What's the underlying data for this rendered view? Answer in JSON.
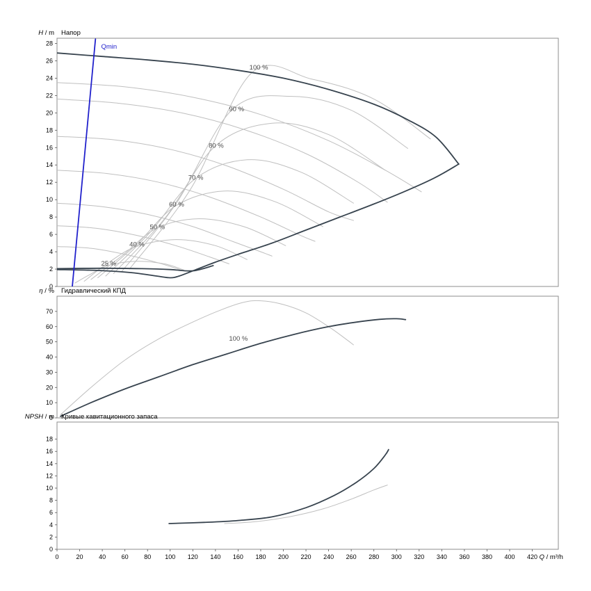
{
  "colors": {
    "dark_curve": "#37434e",
    "gray_curve": "#bfbfbf",
    "qmin_blue": "#2121cc",
    "annotation": "#4d4d4d",
    "border": "#8c8c8c",
    "tick_text": "#000000"
  },
  "x_axis": {
    "label_var": "Q",
    "label_unit": " / m³/h",
    "min": 0,
    "max": 443,
    "tick_step": 20,
    "tick_max": 420
  },
  "chart_data": [
    {
      "type": "line",
      "title": "Напор",
      "ylabel_var": "H",
      "ylabel_unit": " / m",
      "ymax": 28.6,
      "ytick_step": 2,
      "ytick_max": 28,
      "series": [
        {
          "name": "trim-curve-1",
          "color": "gray_curve",
          "width": 1,
          "points": [
            [
              0,
              23.5
            ],
            [
              60,
              23.0
            ],
            [
              120,
              21.8
            ],
            [
              180,
              19.8
            ],
            [
              240,
              16.8
            ],
            [
              290,
              13.4
            ],
            [
              322,
              10.9
            ]
          ]
        },
        {
          "name": "trim-curve-2",
          "color": "gray_curve",
          "width": 1,
          "points": [
            [
              0,
              21.6
            ],
            [
              55,
              21.1
            ],
            [
              110,
              20.0
            ],
            [
              165,
              18.1
            ],
            [
              220,
              15.3
            ],
            [
              265,
              12.1
            ],
            [
              292,
              9.7
            ]
          ]
        },
        {
          "name": "trim-curve-3",
          "color": "gray_curve",
          "width": 1,
          "points": [
            [
              0,
              17.3
            ],
            [
              50,
              16.9
            ],
            [
              100,
              15.8
            ],
            [
              150,
              13.9
            ],
            [
              200,
              11.2
            ],
            [
              240,
              8.6
            ],
            [
              262,
              7.6
            ]
          ]
        },
        {
          "name": "trim-curve-4",
          "color": "gray_curve",
          "width": 1,
          "points": [
            [
              0,
              13.4
            ],
            [
              45,
              13.0
            ],
            [
              90,
              12.0
            ],
            [
              135,
              10.3
            ],
            [
              180,
              8.0
            ],
            [
              215,
              5.9
            ],
            [
              228,
              5.2
            ]
          ]
        },
        {
          "name": "trim-curve-5",
          "color": "gray_curve",
          "width": 1,
          "points": [
            [
              0,
              9.6
            ],
            [
              40,
              9.2
            ],
            [
              80,
              8.3
            ],
            [
              120,
              6.9
            ],
            [
              155,
              5.2
            ],
            [
              180,
              4.0
            ],
            [
              190,
              3.5
            ]
          ]
        },
        {
          "name": "trim-curve-6",
          "color": "gray_curve",
          "width": 1,
          "points": [
            [
              0,
              7.0
            ],
            [
              35,
              6.7
            ],
            [
              70,
              5.9
            ],
            [
              105,
              4.7
            ],
            [
              135,
              3.4
            ],
            [
              152,
              2.6
            ]
          ]
        },
        {
          "name": "trim-curve-7",
          "color": "gray_curve",
          "width": 1,
          "points": [
            [
              0,
              4.6
            ],
            [
              30,
              4.4
            ],
            [
              60,
              3.7
            ],
            [
              90,
              2.7
            ],
            [
              112,
              1.8
            ]
          ]
        },
        {
          "name": "iso-eff-25",
          "color": "gray_curve",
          "width": 1,
          "points": [
            [
              16,
              0.4
            ],
            [
              28,
              1.3
            ],
            [
              45,
              2.4
            ],
            [
              70,
              2.9
            ],
            [
              95,
              2.6
            ],
            [
              112,
              1.9
            ]
          ]
        },
        {
          "name": "iso-eff-40",
          "color": "gray_curve",
          "width": 1,
          "points": [
            [
              24,
              0.6
            ],
            [
              45,
              2.7
            ],
            [
              70,
              4.6
            ],
            [
              105,
              5.4
            ],
            [
              140,
              4.7
            ],
            [
              168,
              3.1
            ]
          ]
        },
        {
          "name": "iso-eff-50",
          "color": "gray_curve",
          "width": 1,
          "points": [
            [
              30,
              0.8
            ],
            [
              58,
              3.6
            ],
            [
              88,
              6.7
            ],
            [
              125,
              7.8
            ],
            [
              165,
              6.9
            ],
            [
              202,
              4.7
            ]
          ]
        },
        {
          "name": "iso-eff-60",
          "color": "gray_curve",
          "width": 1,
          "points": [
            [
              36,
              1.0
            ],
            [
              70,
              4.8
            ],
            [
              105,
              9.3
            ],
            [
              148,
              11.0
            ],
            [
              192,
              9.8
            ],
            [
              235,
              6.9
            ]
          ]
        },
        {
          "name": "iso-eff-70",
          "color": "gray_curve",
          "width": 1,
          "points": [
            [
              43,
              1.2
            ],
            [
              82,
              6.2
            ],
            [
              122,
              12.4
            ],
            [
              168,
              14.6
            ],
            [
              215,
              13.2
            ],
            [
              262,
              9.6
            ]
          ]
        },
        {
          "name": "iso-eff-80",
          "color": "gray_curve",
          "width": 1,
          "points": [
            [
              50,
              1.5
            ],
            [
              95,
              7.8
            ],
            [
              140,
              16.2
            ],
            [
              190,
              18.8
            ],
            [
              240,
              17.5
            ],
            [
              290,
              13.4
            ]
          ]
        },
        {
          "name": "iso-eff-90",
          "color": "gray_curve",
          "width": 1,
          "points": [
            [
              57,
              1.7
            ],
            [
              105,
              9.5
            ],
            [
              155,
              20.4
            ],
            [
              208,
              21.9
            ],
            [
              260,
              20.3
            ],
            [
              310,
              15.9
            ]
          ]
        },
        {
          "name": "iso-eff-100",
          "color": "gray_curve",
          "width": 1,
          "points": [
            [
              64,
              2.0
            ],
            [
              118,
              11.2
            ],
            [
              172,
              24.6
            ],
            [
              225,
              23.9
            ],
            [
              280,
              21.6
            ],
            [
              330,
              17.0
            ]
          ]
        },
        {
          "name": "field-envelope-upper",
          "color": "dark_curve",
          "width": 1.8,
          "points": [
            [
              0,
              26.9
            ],
            [
              40,
              26.5
            ],
            [
              80,
              26.1
            ],
            [
              120,
              25.6
            ],
            [
              160,
              24.9
            ],
            [
              200,
              24.0
            ],
            [
              240,
              22.7
            ],
            [
              280,
              21.0
            ],
            [
              310,
              19.2
            ],
            [
              335,
              17.2
            ],
            [
              355,
              14.1
            ]
          ]
        },
        {
          "name": "field-envelope-lower",
          "color": "dark_curve",
          "width": 1.8,
          "points": [
            [
              355,
              14.1
            ],
            [
              335,
              12.6
            ],
            [
              310,
              11.1
            ],
            [
              280,
              9.5
            ],
            [
              250,
              8.0
            ],
            [
              220,
              6.5
            ],
            [
              190,
              5.0
            ],
            [
              160,
              3.7
            ],
            [
              140,
              2.8
            ],
            [
              122,
              1.9
            ],
            [
              108,
              1.2
            ],
            [
              100,
              1.0
            ],
            [
              88,
              1.2
            ],
            [
              65,
              1.6
            ],
            [
              35,
              1.85
            ],
            [
              0,
              1.95
            ]
          ]
        },
        {
          "name": "min-head-curve",
          "color": "dark_curve",
          "width": 1.8,
          "points": [
            [
              0,
              2.05
            ],
            [
              40,
              2.1
            ],
            [
              75,
              2.05
            ],
            [
              100,
              1.95
            ],
            [
              120,
              1.8
            ],
            [
              138,
              2.4
            ]
          ]
        },
        {
          "name": "qmin-line",
          "color": "qmin_blue",
          "width": 1.8,
          "points": [
            [
              34,
              28.5
            ],
            [
              13.5,
              0
            ]
          ]
        }
      ],
      "annotations": [
        {
          "text": "Qmin",
          "x": 39,
          "y": 27.4,
          "color": "qmin_blue"
        },
        {
          "text": "100 %",
          "x": 170,
          "y": 25.0,
          "color": "annotation"
        },
        {
          "text": "90 %",
          "x": 152,
          "y": 20.2,
          "color": "annotation"
        },
        {
          "text": "80 %",
          "x": 134,
          "y": 16.0,
          "color": "annotation"
        },
        {
          "text": "70 %",
          "x": 116,
          "y": 12.3,
          "color": "annotation"
        },
        {
          "text": "60 %",
          "x": 99,
          "y": 9.2,
          "color": "annotation"
        },
        {
          "text": "50 %",
          "x": 82,
          "y": 6.6,
          "color": "annotation"
        },
        {
          "text": "40 %",
          "x": 64,
          "y": 4.6,
          "color": "annotation"
        },
        {
          "text": "25 %",
          "x": 39,
          "y": 2.4,
          "color": "annotation"
        }
      ]
    },
    {
      "type": "line",
      "title": "Гидравлический КПД",
      "ylabel_var": "η",
      "ylabel_unit": " / %",
      "ymax": 80,
      "ytick_step": 10,
      "ytick_max": 70,
      "series": [
        {
          "name": "efficiency-curve-gray",
          "color": "gray_curve",
          "width": 1,
          "points": [
            [
              3,
              2
            ],
            [
              30,
              20
            ],
            [
              60,
              38
            ],
            [
              90,
              52
            ],
            [
              120,
              63
            ],
            [
              145,
              71
            ],
            [
              165,
              76
            ],
            [
              180,
              77
            ],
            [
              200,
              74.5
            ],
            [
              220,
              69
            ],
            [
              240,
              60
            ],
            [
              255,
              52
            ],
            [
              262,
              48
            ]
          ]
        },
        {
          "name": "efficiency-curve-100pct",
          "color": "dark_curve",
          "width": 1.8,
          "points": [
            [
              3,
              1
            ],
            [
              30,
              10
            ],
            [
              60,
              19
            ],
            [
              90,
              27
            ],
            [
              120,
              35
            ],
            [
              150,
              42
            ],
            [
              180,
              49
            ],
            [
              210,
              55
            ],
            [
              240,
              60
            ],
            [
              265,
              63
            ],
            [
              285,
              64.8
            ],
            [
              300,
              65.2
            ],
            [
              308,
              64.6
            ]
          ]
        }
      ],
      "annotations": [
        {
          "text": "100 %",
          "x": 152,
          "y": 50.7,
          "color": "annotation"
        }
      ]
    },
    {
      "type": "line",
      "title": "Кривые кавитационного запаса",
      "ylabel_var": "NPSH",
      "ylabel_unit": " / m",
      "ymax": 20.8,
      "ytick_step": 2,
      "ytick_max": 18,
      "series": [
        {
          "name": "npsh-curve-gray",
          "color": "gray_curve",
          "width": 1,
          "points": [
            [
              148,
              4.2
            ],
            [
              175,
              4.5
            ],
            [
              205,
              5.3
            ],
            [
              235,
              6.6
            ],
            [
              260,
              8.2
            ],
            [
              280,
              9.7
            ],
            [
              292,
              10.5
            ]
          ]
        },
        {
          "name": "npsh-curve",
          "color": "dark_curve",
          "width": 1.8,
          "points": [
            [
              99,
              4.2
            ],
            [
              130,
              4.4
            ],
            [
              160,
              4.7
            ],
            [
              190,
              5.3
            ],
            [
              220,
              6.8
            ],
            [
              245,
              8.8
            ],
            [
              265,
              11.0
            ],
            [
              280,
              13.2
            ],
            [
              290,
              15.4
            ],
            [
              293,
              16.3
            ]
          ]
        }
      ],
      "annotations": []
    }
  ]
}
